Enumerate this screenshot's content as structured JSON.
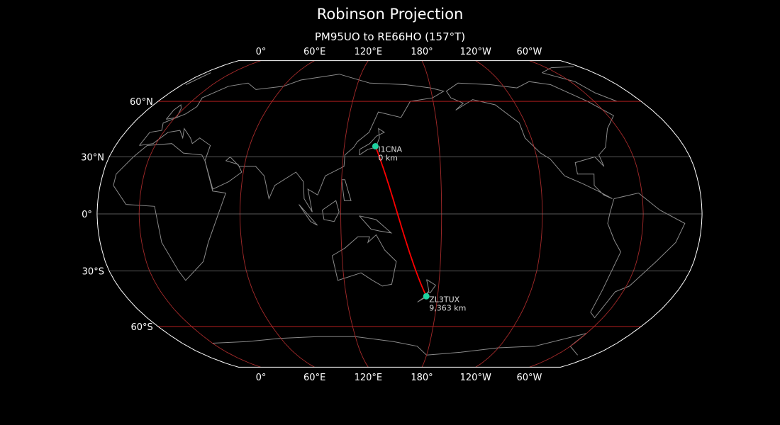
{
  "title": "Robinson Projection",
  "subtitle": "PM95UO to RE66HO (157°T)",
  "map": {
    "projection": "Robinson",
    "central_longitude": 155,
    "meridians": [
      0,
      60,
      120,
      180,
      -120,
      -60
    ],
    "meridian_labels": [
      "0°",
      "60°E",
      "120°E",
      "180°",
      "120°W",
      "60°W"
    ],
    "parallels": [
      60,
      30,
      0,
      -30,
      -60
    ],
    "parallel_labels": [
      "60°N",
      "30°N",
      "0°",
      "30°S",
      "60°S"
    ],
    "colors": {
      "background": "#000000",
      "coastline": "#8a8a8a",
      "meridian": "#a52a2a",
      "parallel_major": "#cc2222",
      "parallel_minor": "#777777",
      "outline": "#ffffff",
      "path": "#ff0000",
      "station": "#1fd1a0"
    }
  },
  "stations": [
    {
      "call": "I1CNA",
      "distance": "0 km",
      "lat": 35.6,
      "lon": 139.7
    },
    {
      "call": "ZL3TUX",
      "distance": "9,363 km",
      "lat": -43.4,
      "lon": 172.6
    }
  ]
}
